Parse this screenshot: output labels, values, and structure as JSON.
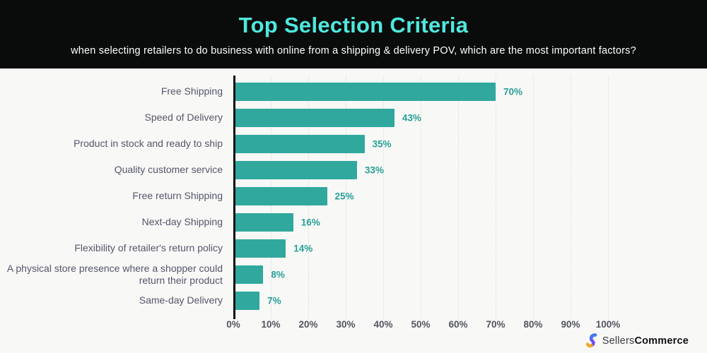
{
  "header": {
    "title": "Top Selection Criteria",
    "subtitle": "when selecting retailers to do business with online from a shipping & delivery POV, which are the most important factors?"
  },
  "chart_data": {
    "type": "bar",
    "orientation": "horizontal",
    "title": "Top Selection Criteria",
    "xlabel": "",
    "ylabel": "",
    "categories": [
      "Free Shipping",
      "Speed of Delivery",
      "Product in stock and ready to ship",
      "Quality customer service",
      "Free return Shipping",
      "Next-day Shipping",
      "Flexibility of retailer's return policy",
      "A physical store presence where a shopper could return their product",
      "Same-day Delivery"
    ],
    "values": [
      70,
      43,
      35,
      33,
      25,
      16,
      14,
      8,
      7
    ],
    "value_suffix": "%",
    "xlim": [
      0,
      100
    ],
    "x_ticks": [
      0,
      10,
      20,
      30,
      40,
      50,
      60,
      70,
      80,
      90,
      100
    ],
    "tick_suffix": "%",
    "grid": "vertical-dotted",
    "legend": "none",
    "bar_color": "#31a89d",
    "value_color": "#27a096"
  },
  "footer": {
    "brand_regular": "Sellers",
    "brand_bold": "Commerce"
  },
  "colors": {
    "header_bg": "#0a0c0c",
    "title": "#4fe8dd",
    "subtitle": "#ffffff",
    "body_bg": "#f8f8f6",
    "label_text": "#54566b",
    "tick_text": "#53555f",
    "axis_line": "#0b0b0b",
    "gridline": "#dddde2",
    "logo_purple": "#6d4df2",
    "logo_yellow": "#f5a623"
  }
}
